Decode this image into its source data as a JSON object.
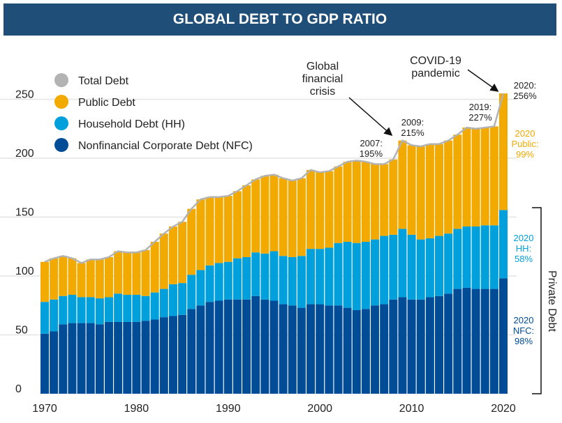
{
  "title": "GLOBAL DEBT TO GDP RATIO",
  "colors": {
    "total": "#b3b3b3",
    "public": "#f2a900",
    "household": "#00a0dc",
    "nfc": "#004c97",
    "title_bar": "#1f4e79"
  },
  "chart_data": {
    "type": "bar",
    "stacked": true,
    "title": "GLOBAL DEBT TO GDP RATIO",
    "xlabel": "",
    "ylabel": "",
    "ylim": [
      0,
      260
    ],
    "yticks": [
      "0",
      "50",
      "100",
      "150",
      "200",
      "250"
    ],
    "xticks": [
      "1970",
      "1980",
      "1990",
      "2000",
      "2010",
      "2020"
    ],
    "grid": true,
    "legend_position": "top-left",
    "legend": [
      "Total Debt",
      "Public Debt",
      "Household Debt (HH)",
      "Nonfinancial Corporate Debt (NFC)"
    ],
    "x": [
      1970,
      1971,
      1972,
      1973,
      1974,
      1975,
      1976,
      1977,
      1978,
      1979,
      1980,
      1981,
      1982,
      1983,
      1984,
      1985,
      1986,
      1987,
      1988,
      1989,
      1990,
      1991,
      1992,
      1993,
      1994,
      1995,
      1996,
      1997,
      1998,
      1999,
      2000,
      2001,
      2002,
      2003,
      2004,
      2005,
      2006,
      2007,
      2008,
      2009,
      2010,
      2011,
      2012,
      2013,
      2014,
      2015,
      2016,
      2017,
      2018,
      2019,
      2020
    ],
    "series": [
      {
        "name": "Nonfinancial Corporate Debt (NFC)",
        "values": [
          51,
          53,
          59,
          60,
          60,
          60,
          59,
          61,
          61,
          61,
          61,
          62,
          63,
          65,
          66,
          67,
          72,
          75,
          78,
          79,
          80,
          80,
          80,
          83,
          80,
          79,
          76,
          75,
          73,
          76,
          76,
          75,
          75,
          73,
          71,
          72,
          75,
          76,
          80,
          82,
          80,
          80,
          82,
          83,
          85,
          89,
          90,
          89,
          89,
          89,
          98
        ]
      },
      {
        "name": "Household Debt (HH)",
        "values": [
          27,
          27,
          24,
          24,
          22,
          22,
          22,
          21,
          24,
          23,
          23,
          21,
          23,
          24,
          27,
          27,
          29,
          30,
          31,
          32,
          32,
          35,
          36,
          37,
          39,
          42,
          41,
          41,
          44,
          47,
          47,
          49,
          53,
          56,
          57,
          57,
          56,
          58,
          55,
          58,
          55,
          51,
          50,
          51,
          51,
          51,
          52,
          53,
          54,
          54,
          58
        ]
      },
      {
        "name": "Public Debt",
        "values": [
          34,
          35,
          34,
          31,
          29,
          32,
          33,
          34,
          36,
          36,
          36,
          39,
          43,
          47,
          49,
          52,
          56,
          60,
          58,
          56,
          56,
          57,
          61,
          62,
          66,
          65,
          66,
          65,
          66,
          67,
          65,
          65,
          65,
          68,
          70,
          68,
          64,
          61,
          64,
          75,
          76,
          79,
          80,
          78,
          79,
          80,
          84,
          83,
          83,
          84,
          99
        ]
      }
    ],
    "annotations": {
      "gfc": "Global financial crisis",
      "gfc_lines": [
        "Global",
        "financial",
        "crisis"
      ],
      "covid_lines": [
        "COVID-19",
        "pandemic"
      ],
      "y2007": [
        "2007:",
        "195%"
      ],
      "y2009": [
        "2009:",
        "215%"
      ],
      "y2019": [
        "2019:",
        "227%"
      ],
      "y2020": [
        "2020:",
        "256%"
      ],
      "public2020": [
        "2020",
        "Public:",
        "99%"
      ],
      "hh2020": [
        "2020",
        "HH:",
        "58%"
      ],
      "nfc2020": [
        "2020",
        "NFC:",
        "98%"
      ],
      "private": "Private Debt"
    }
  }
}
